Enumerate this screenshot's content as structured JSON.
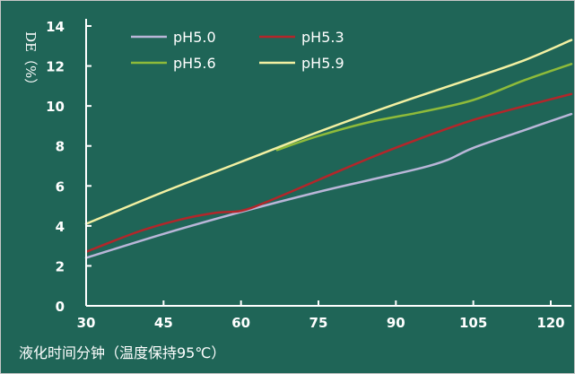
{
  "chart_data": {
    "type": "line",
    "xlabel": "液化时间分钟（温度保持95℃）",
    "ylabel": "DE（%）",
    "xlim": [
      30,
      124
    ],
    "ylim": [
      0,
      14
    ],
    "x_ticks": [
      "30",
      "45",
      "60",
      "75",
      "90",
      "105",
      "120"
    ],
    "y_ticks": [
      "0",
      "2",
      "4",
      "6",
      "8",
      "10",
      "12",
      "14"
    ],
    "x_tick_values": [
      30,
      45,
      60,
      75,
      90,
      105,
      120
    ],
    "y_tick_values": [
      0,
      2,
      4,
      6,
      8,
      10,
      12,
      14
    ],
    "grid": false,
    "legend_position": "top-left",
    "series": [
      {
        "name": "pH5.0",
        "color": "#b9b6d8",
        "x": [
          30,
          45,
          60,
          75,
          85,
          95,
          100,
          105,
          115,
          124
        ],
        "y": [
          2.4,
          3.6,
          4.7,
          5.7,
          6.3,
          6.9,
          7.3,
          7.9,
          8.8,
          9.6
        ]
      },
      {
        "name": "pH5.3",
        "color": "#b3262a",
        "x": [
          30,
          40,
          48,
          55,
          60,
          65,
          75,
          85,
          95,
          105,
          115,
          124
        ],
        "y": [
          2.7,
          3.7,
          4.3,
          4.65,
          4.75,
          5.2,
          6.3,
          7.4,
          8.4,
          9.3,
          10.0,
          10.6
        ]
      },
      {
        "name": "pH5.6",
        "color": "#8ebb3a",
        "x": [
          67,
          75,
          85,
          95,
          105,
          115,
          124
        ],
        "y": [
          7.8,
          8.5,
          9.2,
          9.7,
          10.3,
          11.3,
          12.1
        ]
      },
      {
        "name": "pH5.9",
        "color": "#f2f0a2",
        "x": [
          30,
          45,
          60,
          75,
          90,
          105,
          115,
          124
        ],
        "y": [
          4.1,
          5.7,
          7.2,
          8.7,
          10.1,
          11.4,
          12.3,
          13.3
        ]
      }
    ]
  },
  "axis_color": "#ffffff"
}
